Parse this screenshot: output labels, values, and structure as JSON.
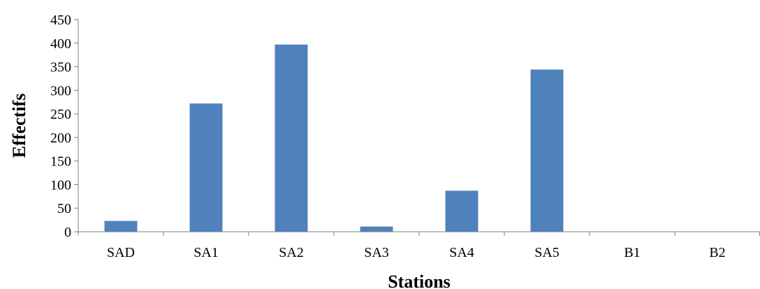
{
  "chart_data": {
    "type": "bar",
    "categories": [
      "SAD",
      "SA1",
      "SA2",
      "SA3",
      "SA4",
      "SA5",
      "B1",
      "B2"
    ],
    "values": [
      23,
      272,
      397,
      11,
      87,
      344,
      0,
      0
    ],
    "xlabel": "Stations",
    "ylabel": "Effectifs",
    "ylim": [
      0,
      450
    ],
    "yticks": [
      0,
      50,
      100,
      150,
      200,
      250,
      300,
      350,
      400,
      450
    ],
    "bar_color": "#4f81bd",
    "grid": false,
    "legend": "none"
  }
}
